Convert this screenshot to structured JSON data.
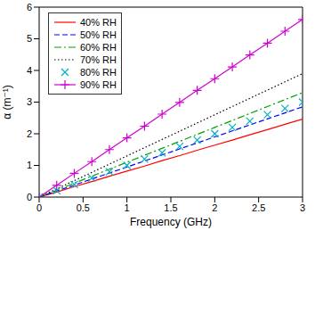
{
  "chart_data": {
    "type": "line",
    "x_label": "Frequency (GHz)",
    "y_label": "α (m⁻¹)",
    "x": [
      0,
      0.2,
      0.4,
      0.6,
      0.8,
      1.0,
      1.2,
      1.4,
      1.6,
      1.8,
      2.0,
      2.2,
      2.4,
      2.6,
      2.8,
      3.0
    ],
    "xlim": [
      0,
      3
    ],
    "xticks": [
      0,
      0.5,
      1,
      1.5,
      2,
      2.5,
      3
    ],
    "ylim": [
      0,
      6
    ],
    "yticks": [
      0,
      1,
      2,
      3,
      4,
      5,
      6
    ],
    "grid": false,
    "legend": "upper left",
    "series": [
      {
        "name": "40% RH",
        "color": "#ff0000",
        "line_style": "solid",
        "marker": "none",
        "values": [
          0,
          0.16,
          0.33,
          0.49,
          0.66,
          0.82,
          0.98,
          1.15,
          1.31,
          1.48,
          1.64,
          1.8,
          1.97,
          2.13,
          2.3,
          2.46
        ]
      },
      {
        "name": "50% RH",
        "color": "#0000ff",
        "line_style": "dashed",
        "marker": "none",
        "values": [
          0,
          0.19,
          0.38,
          0.57,
          0.76,
          0.95,
          1.14,
          1.33,
          1.52,
          1.71,
          1.9,
          2.09,
          2.28,
          2.47,
          2.66,
          2.85
        ]
      },
      {
        "name": "60% RH",
        "color": "#00a000",
        "line_style": "dashdot",
        "marker": "none",
        "values": [
          0,
          0.22,
          0.44,
          0.66,
          0.88,
          1.1,
          1.32,
          1.54,
          1.76,
          1.98,
          2.2,
          2.42,
          2.64,
          2.86,
          3.08,
          3.3
        ]
      },
      {
        "name": "70% RH",
        "color": "#000000",
        "line_style": "dotted",
        "marker": "none",
        "values": [
          0,
          0.26,
          0.52,
          0.78,
          1.04,
          1.3,
          1.56,
          1.82,
          2.08,
          2.34,
          2.6,
          2.86,
          3.12,
          3.38,
          3.64,
          3.9
        ]
      },
      {
        "name": "80% RH",
        "color": "#00b0c0",
        "line_style": "none",
        "marker": "x",
        "values": [
          0,
          0.2,
          0.4,
          0.6,
          0.8,
          1.0,
          1.2,
          1.4,
          1.6,
          1.8,
          2.0,
          2.2,
          2.4,
          2.6,
          2.8,
          3.0
        ]
      },
      {
        "name": "90% RH",
        "color": "#d000d0",
        "line_style": "solid",
        "marker": "+",
        "values": [
          0,
          0.37,
          0.75,
          1.12,
          1.5,
          1.87,
          2.24,
          2.62,
          2.99,
          3.37,
          3.74,
          4.11,
          4.49,
          4.86,
          5.24,
          5.61
        ]
      }
    ]
  }
}
